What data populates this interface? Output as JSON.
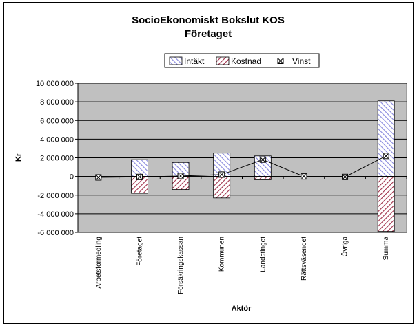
{
  "chart_data": {
    "type": "bar",
    "title": "SocioEkonomiskt Bokslut KOS",
    "subtitle": "Företaget",
    "xlabel": "Aktör",
    "ylabel": "Kr",
    "ylim": [
      -6000000,
      10000000
    ],
    "ytick_step": 2000000,
    "yticks": [
      "10 000 000",
      "8 000 000",
      "6 000 000",
      "4 000 000",
      "2 000 000",
      "0",
      "-2 000 000",
      "-4 000 000",
      "-6 000 000"
    ],
    "categories": [
      "Arbetsförmedling",
      "Företaget",
      "Försäkringskassan",
      "Kommunen",
      "Landstinget",
      "Rättsväsendet",
      "Övriga",
      "Summa"
    ],
    "series": [
      {
        "name": "Intäkt",
        "type": "bar",
        "color": "#8888dd",
        "pattern": "diagonal-hatch",
        "values": [
          0,
          1800000,
          1500000,
          2500000,
          2200000,
          0,
          0,
          8100000
        ]
      },
      {
        "name": "Kostnad",
        "type": "bar",
        "color": "#a0304a",
        "pattern": "diagonal-hatch",
        "values": [
          0,
          -1800000,
          -1400000,
          -2300000,
          -350000,
          0,
          0,
          -5900000
        ]
      },
      {
        "name": "Vinst",
        "type": "line",
        "color": "#000000",
        "marker": "x-square",
        "values": [
          -100000,
          -50000,
          50000,
          200000,
          1800000,
          0,
          -50000,
          2200000
        ]
      }
    ],
    "grid": true,
    "legend_position": "top-right",
    "plot_background": "#c0c0c0"
  }
}
